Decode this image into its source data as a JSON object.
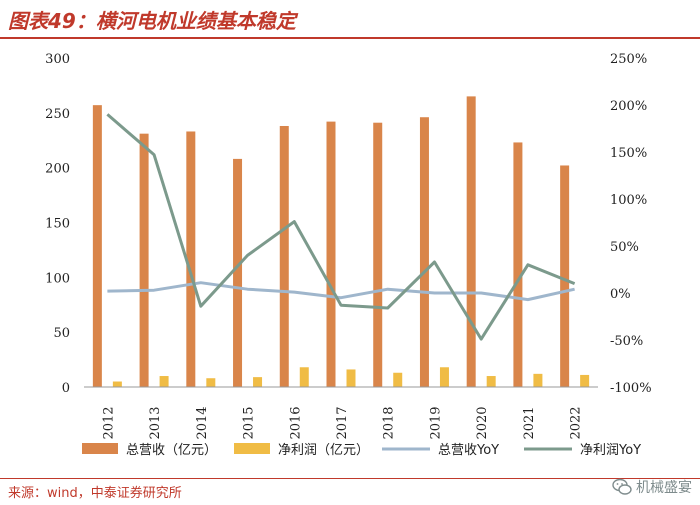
{
  "header": {
    "title": "图表49：横河电机业绩基本稳定"
  },
  "footer": {
    "source": "来源：wind，中泰证券研究所",
    "watermark": "机械盛宴",
    "watermark_icon": "wechat-icon"
  },
  "chart_data": {
    "type": "bar",
    "categories": [
      "2012",
      "2013",
      "2014",
      "2015",
      "2016",
      "2017",
      "2018",
      "2019",
      "2020",
      "2021",
      "2022"
    ],
    "series": [
      {
        "name": "总营收（亿元）",
        "kind": "bar",
        "axis": "left",
        "color": "#d9854a",
        "values": [
          257,
          231,
          233,
          208,
          238,
          242,
          241,
          246,
          265,
          223,
          202
        ]
      },
      {
        "name": "净利润（亿元）",
        "kind": "bar",
        "axis": "left",
        "color": "#f0bc45",
        "values": [
          5,
          10,
          8,
          9,
          18,
          16,
          13,
          18,
          10,
          12,
          11
        ]
      },
      {
        "name": "总营收YoY",
        "kind": "line",
        "axis": "right",
        "color": "#9fb6cc",
        "values": [
          2,
          3,
          11,
          4,
          1,
          -5,
          4,
          0,
          0,
          -7,
          4
        ]
      },
      {
        "name": "净利润YoY",
        "kind": "line",
        "axis": "right",
        "color": "#7c9a8c",
        "values": [
          190,
          147,
          -14,
          40,
          76,
          -13,
          -16,
          33,
          -49,
          30,
          10
        ]
      }
    ],
    "left_axis": {
      "ylim": [
        0,
        300
      ],
      "ticks": [
        "0",
        "50",
        "100",
        "150",
        "200",
        "250",
        "300"
      ]
    },
    "right_axis": {
      "ylim": [
        -100,
        250
      ],
      "ticks": [
        "-100%",
        "-50%",
        "0%",
        "50%",
        "100%",
        "150%",
        "200%",
        "250%"
      ]
    },
    "grid": false,
    "legend_position": "bottom"
  }
}
